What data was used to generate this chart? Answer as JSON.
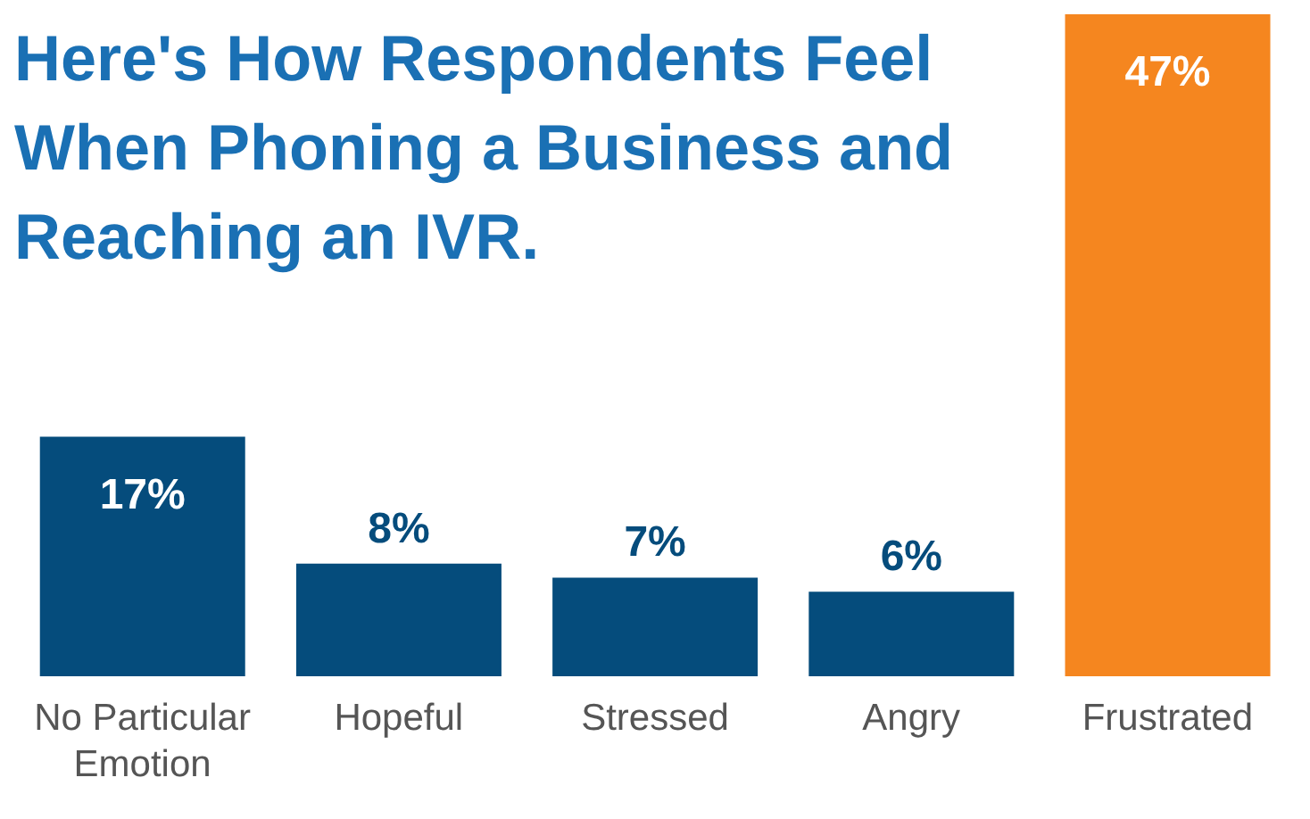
{
  "chart_data": {
    "type": "bar",
    "title": "Here's How Respondents Feel When Phoning a Business and Reaching an IVR.",
    "categories": [
      "No Particular Emotion",
      "Hopeful",
      "Stressed",
      "Angry",
      "Frustrated"
    ],
    "values": [
      17,
      8,
      7,
      6,
      47
    ],
    "colors": [
      "#054c7c",
      "#054c7c",
      "#054c7c",
      "#054c7c",
      "#f5861f"
    ],
    "value_labels": [
      "17%",
      "8%",
      "7%",
      "6%",
      "47%"
    ]
  }
}
